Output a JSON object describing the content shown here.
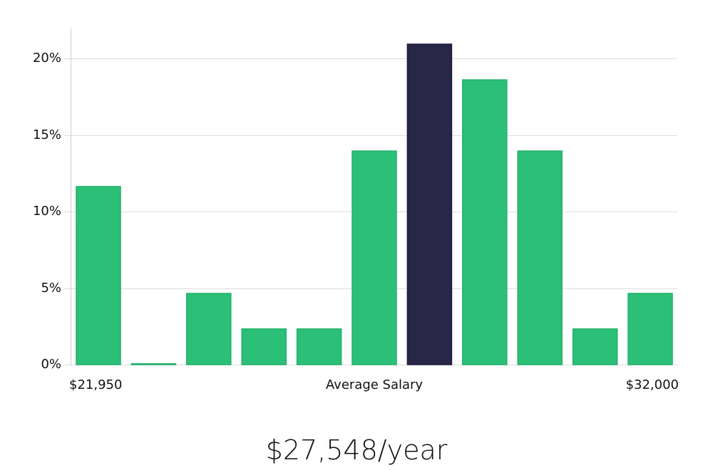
{
  "chart_data": {
    "type": "bar",
    "title": "",
    "xlabel": "Average Salary",
    "ylabel": "",
    "x_range_labels": {
      "min": "$21,950",
      "max": "$32,000"
    },
    "categories": [
      "bin1",
      "bin2",
      "bin3",
      "bin4",
      "bin5",
      "bin6",
      "bin7",
      "bin8",
      "bin9",
      "bin10",
      "bin11"
    ],
    "values": [
      11.63,
      0.0,
      4.65,
      2.33,
      2.33,
      13.95,
      20.93,
      18.6,
      13.95,
      2.33,
      4.65
    ],
    "highlight_index": 6,
    "ylim": [
      0,
      22
    ],
    "yticks": [
      0,
      5,
      10,
      15,
      20
    ],
    "ytick_labels": [
      "0%",
      "5%",
      "10%",
      "15%",
      "20%"
    ],
    "grid": true,
    "legend": null,
    "colors": {
      "bar": "#2bbf77",
      "bar_edge": "#22b06b",
      "highlight": "#292747",
      "highlight_edge": "#1c1a3d",
      "grid": "#dddddd",
      "axis": "#cccccc"
    }
  },
  "labels": {
    "x_min": "$21,950",
    "x_center": "Average Salary",
    "x_max": "$32,000",
    "headline": "$27,548/year"
  }
}
